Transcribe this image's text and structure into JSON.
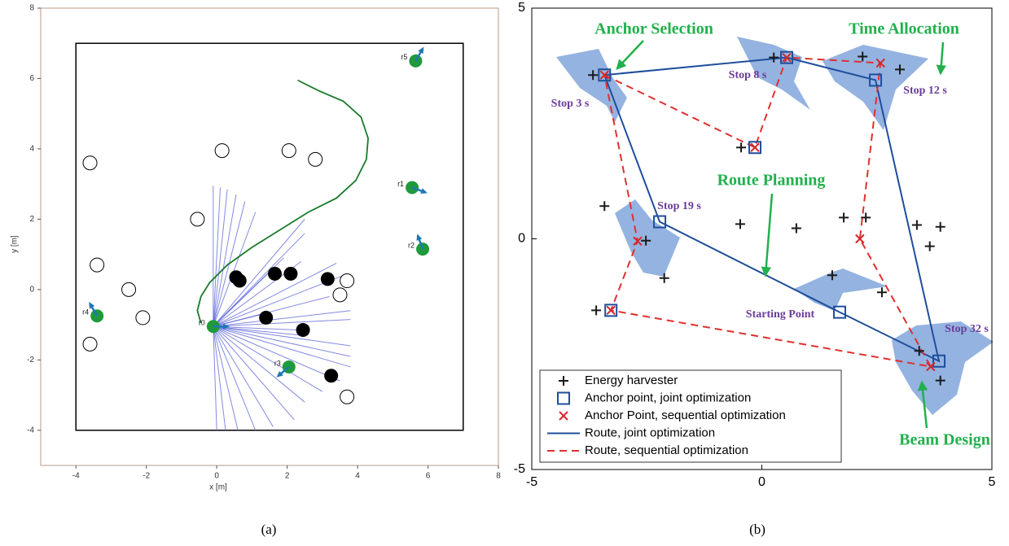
{
  "chart_data": [
    {
      "type": "trajectory",
      "xlabel": "x [m]",
      "ylabel": "y [m]",
      "caption": "(a)",
      "xlim": [
        -5,
        8
      ],
      "ylim": [
        -5,
        8
      ],
      "xticks": [
        -4,
        -2,
        0,
        2,
        4,
        6,
        8
      ],
      "yticks": [
        -4,
        -2,
        0,
        2,
        4,
        6,
        8
      ],
      "boundary": {
        "x": [
          -4,
          7
        ],
        "y": [
          -4,
          7
        ]
      },
      "free_obstacles": {
        "x": [
          -3.6,
          0.15,
          2.05,
          2.8,
          -0.55,
          -3.4,
          -2.5,
          -2.1,
          -3.6,
          3.7,
          3.5,
          3.7
        ],
        "y": [
          3.6,
          3.95,
          3.95,
          3.7,
          2.0,
          0.7,
          0,
          -0.8,
          -1.55,
          0.25,
          -0.15,
          -3.05
        ]
      },
      "detected_obstacles": {
        "x": [
          0.55,
          0.65,
          1.65,
          2.1,
          3.15,
          1.4,
          2.45,
          3.25
        ],
        "y": [
          0.35,
          0.25,
          0.45,
          0.45,
          0.3,
          -0.8,
          -1.15,
          -2.45
        ]
      },
      "robots": {
        "names": [
          "r0",
          "r1",
          "r2",
          "r3",
          "r4",
          "r5"
        ],
        "x": [
          -0.1,
          5.55,
          5.85,
          2.05,
          -3.4,
          5.65
        ],
        "y": [
          -1.05,
          2.9,
          1.15,
          -2.2,
          -0.75,
          6.5
        ],
        "heading": [
          0,
          -20,
          110,
          -140,
          120,
          60
        ]
      },
      "path": {
        "x": [
          -0.45,
          -0.55,
          -0.45,
          -0.2,
          0.3,
          1.0,
          1.8,
          2.6,
          3.4,
          3.95,
          4.25,
          4.3,
          4.1,
          3.6,
          2.9,
          2.3
        ],
        "y": [
          -0.95,
          -0.6,
          -0.2,
          0.2,
          0.7,
          1.2,
          1.7,
          2.2,
          2.6,
          3.1,
          3.7,
          4.3,
          4.9,
          5.35,
          5.65,
          5.95
        ]
      },
      "lidar": {
        "x": [
          -0.1,
          0.1,
          0.3,
          0.55,
          0.8,
          1.1,
          2.5,
          2.5,
          1.9,
          1.5,
          2.4,
          3.4,
          3.6,
          3.2,
          1.3,
          3.8,
          3.8,
          2.3,
          2.4,
          3.8,
          3.8,
          3.8,
          3.5,
          3.0,
          2.5,
          2.2,
          1.6,
          1.1,
          0.6,
          0.25,
          0
        ],
        "y": [
          2.95,
          2.9,
          2.85,
          2.7,
          2.5,
          2.2,
          2.0,
          1.6,
          0.9,
          0.5,
          0.8,
          0.75,
          0.4,
          -0.2,
          -0.7,
          -0.6,
          -0.85,
          -1.15,
          -1.3,
          -1.6,
          -1.9,
          -2.2,
          -2.6,
          -2.9,
          -3.2,
          -3.7,
          -3.9,
          -4,
          -4,
          -4,
          -4
        ]
      }
    },
    {
      "type": "route",
      "caption": "(b)",
      "xlim": [
        -5,
        5
      ],
      "ylim": [
        -5,
        5
      ],
      "xticks": [
        -5,
        0,
        5
      ],
      "yticks": [
        -5,
        0,
        5
      ],
      "series": [
        {
          "name": "Energy harvester",
          "color": "#1a1a1a",
          "marker": "plus",
          "x": [
            -3.67,
            0.26,
            2.19,
            3.0,
            -0.45,
            -3.42,
            -2.52,
            -2.12,
            -3.6,
            -0.47,
            0.75,
            1.78,
            2.26,
            3.37,
            3.88,
            3.65,
            1.53,
            2.61,
            3.42,
            3.88
          ],
          "y": [
            3.55,
            3.93,
            3.95,
            3.67,
            1.98,
            0.71,
            -0.04,
            -0.85,
            -1.55,
            0.32,
            0.23,
            0.46,
            0.46,
            0.3,
            0.26,
            -0.16,
            -0.79,
            -1.16,
            -2.43,
            -3.07
          ]
        },
        {
          "name": "Anchor point, joint optimization",
          "color": "#1f4e9c",
          "marker": "square",
          "x": [
            -3.42,
            0.54,
            2.47,
            -0.15,
            -2.22,
            1.69,
            -3.28,
            3.85
          ],
          "y": [
            3.55,
            3.93,
            3.44,
            1.98,
            0.37,
            -1.59,
            -1.55,
            -2.65
          ]
        },
        {
          "name": "Anchor Point, sequential optimization",
          "color": "#d62728",
          "marker": "x",
          "x": [
            -3.42,
            0.54,
            2.58,
            -0.15,
            -2.7,
            2.13,
            -3.28,
            3.67
          ],
          "y": [
            3.55,
            3.93,
            3.81,
            1.98,
            -0.05,
            0,
            -1.55,
            -2.77
          ]
        },
        {
          "name": "Route, joint optimization",
          "color": "#1f4e9c",
          "style": "solid",
          "x": [
            -3.42,
            0.54,
            2.47,
            3.85,
            1.69,
            -2.22,
            -3.42
          ],
          "y": [
            3.55,
            3.93,
            3.44,
            -2.65,
            -1.59,
            0.37,
            3.55
          ]
        },
        {
          "name": "Route, sequential optimization",
          "color": "#e0302f",
          "style": "dashed",
          "x": [
            -3.42,
            -0.15,
            0.54,
            2.58,
            2.13,
            3.67,
            -3.28,
            -2.7,
            -3.42
          ],
          "y": [
            3.55,
            1.98,
            3.93,
            3.81,
            0,
            -2.77,
            -1.55,
            -0.05,
            3.55
          ]
        }
      ],
      "annotations": [
        "Anchor Selection",
        "Time Allocation",
        "Route Planning",
        "Beam Design"
      ],
      "stop_labels": [
        "Stop 3 s",
        "Stop 8 s",
        "Stop 12 s",
        "Stop 19 s",
        "Starting Point",
        "Stop 32 s"
      ]
    }
  ]
}
